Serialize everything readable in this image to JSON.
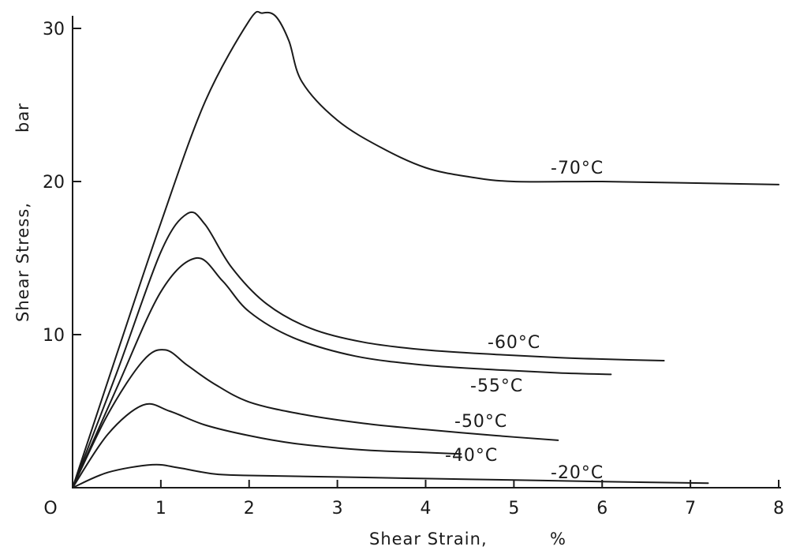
{
  "chart_data": {
    "type": "line",
    "title": "",
    "xlabel": "Shear Strain,",
    "xlabel_unit": "%",
    "ylabel": "Shear Stress,",
    "ylabel_unit": "bar",
    "xlim": [
      0,
      8
    ],
    "ylim": [
      0,
      30
    ],
    "x_ticks": [
      0,
      1,
      2,
      3,
      4,
      5,
      6,
      7,
      8
    ],
    "x_tick_labels": [
      "O",
      "1",
      "2",
      "3",
      "4",
      "5",
      "6",
      "7",
      "8"
    ],
    "y_ticks": [
      10,
      20,
      30
    ],
    "y_tick_labels": [
      "10",
      "20",
      "30"
    ],
    "grid": false,
    "legend": "none (curves labeled inline)",
    "series": [
      {
        "name": "-70°C",
        "x": [
          0,
          0.5,
          1.0,
          1.5,
          2.0,
          2.15,
          2.3,
          2.45,
          2.6,
          3.0,
          3.5,
          4.0,
          4.5,
          5.0,
          6.0,
          7.0,
          8.0
        ],
        "y": [
          0,
          8.7,
          17.3,
          25.2,
          30.5,
          31.0,
          30.8,
          29.2,
          26.5,
          24.0,
          22.2,
          20.9,
          20.3,
          20.0,
          20.0,
          19.9,
          19.8
        ]
      },
      {
        "name": "-60°C",
        "x": [
          0,
          0.5,
          1.0,
          1.3,
          1.5,
          1.8,
          2.2,
          2.7,
          3.3,
          4.0,
          4.8,
          5.5,
          6.0,
          6.7
        ],
        "y": [
          0,
          7.5,
          15.4,
          17.9,
          17.2,
          14.4,
          12.0,
          10.4,
          9.5,
          9.0,
          8.7,
          8.5,
          8.4,
          8.3
        ]
      },
      {
        "name": "-55°C",
        "x": [
          0,
          0.5,
          1.0,
          1.4,
          1.7,
          2.0,
          2.5,
          3.2,
          4.0,
          4.8,
          5.5,
          6.1
        ],
        "y": [
          0,
          6.5,
          12.8,
          15.0,
          13.5,
          11.5,
          9.8,
          8.6,
          8.0,
          7.7,
          7.5,
          7.4
        ]
      },
      {
        "name": "-50°C",
        "x": [
          0,
          0.4,
          0.8,
          1.05,
          1.3,
          1.6,
          2.0,
          2.6,
          3.3,
          4.0,
          4.8,
          5.5
        ],
        "y": [
          0,
          4.8,
          8.3,
          9.0,
          8.0,
          6.8,
          5.6,
          4.8,
          4.2,
          3.8,
          3.4,
          3.1
        ]
      },
      {
        "name": "-40°C",
        "x": [
          0,
          0.4,
          0.8,
          1.1,
          1.5,
          2.0,
          2.5,
          3.0,
          3.5,
          4.0,
          4.4
        ],
        "y": [
          0,
          3.5,
          5.4,
          5.0,
          4.1,
          3.4,
          2.9,
          2.6,
          2.4,
          2.3,
          2.2
        ]
      },
      {
        "name": "-20°C",
        "x": [
          0,
          0.4,
          0.9,
          1.2,
          1.6,
          2.0,
          3.0,
          4.0,
          5.0,
          6.0,
          7.2
        ],
        "y": [
          0,
          1.0,
          1.5,
          1.3,
          0.9,
          0.8,
          0.7,
          0.6,
          0.5,
          0.4,
          0.3
        ]
      }
    ]
  }
}
